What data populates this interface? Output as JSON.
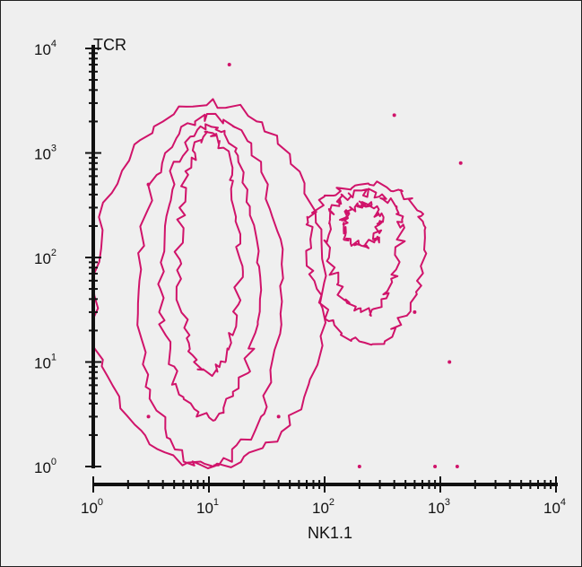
{
  "chart_data": {
    "type": "contour",
    "xlabel": "NK1.1",
    "ylabel": "TCR",
    "xscale": "log",
    "yscale": "log",
    "xlim": [
      1,
      10000
    ],
    "ylim": [
      1,
      10000
    ],
    "x_ticks": [
      {
        "base": "10",
        "exp": "0",
        "value": 1
      },
      {
        "base": "10",
        "exp": "1",
        "value": 10
      },
      {
        "base": "10",
        "exp": "2",
        "value": 100
      },
      {
        "base": "10",
        "exp": "3",
        "value": 1000
      },
      {
        "base": "10",
        "exp": "4",
        "value": 10000
      }
    ],
    "y_ticks": [
      {
        "base": "10",
        "exp": "0",
        "value": 1
      },
      {
        "base": "10",
        "exp": "1",
        "value": 10
      },
      {
        "base": "10",
        "exp": "2",
        "value": 100
      },
      {
        "base": "10",
        "exp": "3",
        "value": 1000
      },
      {
        "base": "10",
        "exp": "4",
        "value": 10000
      }
    ],
    "grid": false,
    "contour_color": "#d0136a",
    "populations": [
      {
        "center": [
          10,
          60
        ],
        "levels": [
          {
            "cx": 10,
            "cy": 40,
            "hw_dec": 1.0,
            "top": 3000,
            "bottom": 1
          },
          {
            "cx": 10,
            "cy": 50,
            "hw_dec": 0.62,
            "top": 2200,
            "bottom": 1
          },
          {
            "cx": 10,
            "cy": 60,
            "hw_dec": 0.42,
            "top": 1800,
            "bottom": 3
          },
          {
            "cx": 10,
            "cy": 100,
            "hw_dec": 0.26,
            "top": 1500,
            "bottom": 8
          }
        ]
      },
      {
        "center": [
          250,
          180
        ],
        "levels": [
          {
            "cx": 230,
            "cy": 180,
            "hw_dec": 0.5,
            "top": 500,
            "bottom": 15
          },
          {
            "cx": 220,
            "cy": 200,
            "hw_dec": 0.32,
            "top": 420,
            "bottom": 30
          },
          {
            "cx": 210,
            "cy": 220,
            "hw_dec": 0.16,
            "top": 320,
            "bottom": 130
          }
        ]
      }
    ],
    "dots": [
      [
        15,
        7000
      ],
      [
        400,
        2300
      ],
      [
        1500,
        800
      ],
      [
        200,
        1
      ],
      [
        900,
        1
      ],
      [
        1400,
        1
      ],
      [
        1200,
        10
      ],
      [
        600,
        30
      ],
      [
        3,
        500
      ],
      [
        3,
        3
      ],
      [
        40,
        3
      ]
    ]
  }
}
